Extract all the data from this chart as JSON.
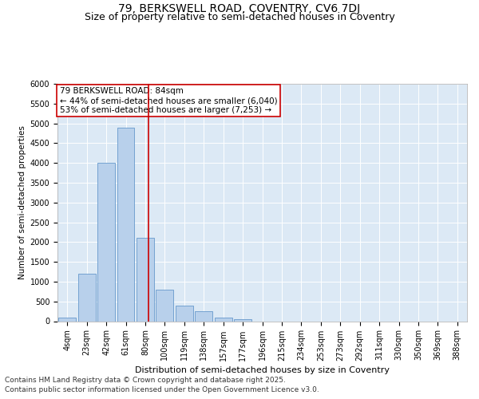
{
  "title1": "79, BERKSWELL ROAD, COVENTRY, CV6 7DJ",
  "title2": "Size of property relative to semi-detached houses in Coventry",
  "xlabel": "Distribution of semi-detached houses by size in Coventry",
  "ylabel": "Number of semi-detached properties",
  "annotation_title": "79 BERKSWELL ROAD: 84sqm",
  "annotation_line2": "← 44% of semi-detached houses are smaller (6,040)",
  "annotation_line3": "53% of semi-detached houses are larger (7,253) →",
  "footer1": "Contains HM Land Registry data © Crown copyright and database right 2025.",
  "footer2": "Contains public sector information licensed under the Open Government Licence v3.0.",
  "categories": [
    "4sqm",
    "23sqm",
    "42sqm",
    "61sqm",
    "80sqm",
    "100sqm",
    "119sqm",
    "138sqm",
    "157sqm",
    "177sqm",
    "196sqm",
    "215sqm",
    "234sqm",
    "253sqm",
    "273sqm",
    "292sqm",
    "311sqm",
    "330sqm",
    "350sqm",
    "369sqm",
    "388sqm"
  ],
  "values": [
    100,
    1200,
    4000,
    4900,
    2100,
    800,
    400,
    250,
    100,
    50,
    0,
    0,
    0,
    0,
    0,
    0,
    0,
    0,
    0,
    0,
    0
  ],
  "bar_color": "#b8d0eb",
  "bar_edge_color": "#6699cc",
  "vline_color": "#cc0000",
  "vline_x": 4.15,
  "background_color": "#ffffff",
  "plot_bg_color": "#dce9f5",
  "grid_color": "#ffffff",
  "annotation_box_color": "#ffffff",
  "annotation_box_edge": "#cc0000",
  "ylim": [
    0,
    6000
  ],
  "yticks": [
    0,
    500,
    1000,
    1500,
    2000,
    2500,
    3000,
    3500,
    4000,
    4500,
    5000,
    5500,
    6000
  ],
  "title1_fontsize": 10,
  "title2_fontsize": 9,
  "annotation_fontsize": 7.5,
  "footer_fontsize": 6.5,
  "ylabel_fontsize": 7.5,
  "xlabel_fontsize": 8,
  "tick_fontsize": 7,
  "ytick_fontsize": 7
}
